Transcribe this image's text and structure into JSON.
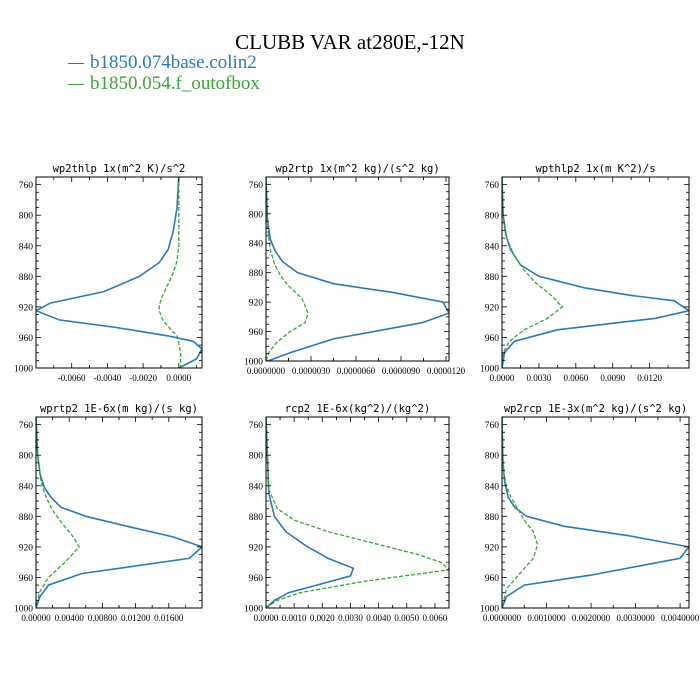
{
  "title": "CLUBB VAR at280E,-12N",
  "legend": [
    {
      "label": "b1850.074base.colin2",
      "color": "#2a7ab8",
      "style": "solid"
    },
    {
      "label": "b1850.054.f_outofbox",
      "color": "#3aa33a",
      "style": "dashed"
    }
  ],
  "chart_data": [
    {
      "type": "line",
      "title": "wp2thlp  1x(m^2 K)/s^2",
      "ylim": [
        1000,
        750
      ],
      "yticks": [
        760,
        800,
        840,
        880,
        920,
        960,
        1000
      ],
      "ytick_labels": [
        "760",
        "800",
        "840",
        "880",
        "920",
        "960",
        "1000"
      ],
      "xlim": [
        -0.008,
        0.0013
      ],
      "xticks": [
        -0.006,
        -0.004,
        -0.002,
        0.0
      ],
      "xtick_labels": [
        "-0.0060",
        "-0.0040",
        "-0.0020",
        "0.0000"
      ],
      "grid": false,
      "series": [
        {
          "name": "b1850.074base.colin2",
          "color": "#2a7ab8",
          "style": "solid",
          "x": [
            0.0,
            -0.0001,
            -0.0003,
            -0.0006,
            -0.0011,
            -0.0022,
            -0.0042,
            -0.0072,
            -0.008,
            -0.0067,
            -0.0035,
            -0.0006,
            0.0008,
            0.0013,
            0.001,
            0.0
          ],
          "y": [
            750,
            790,
            820,
            845,
            862,
            880,
            900,
            915,
            925,
            937,
            947,
            958,
            965,
            975,
            988,
            1000
          ]
        },
        {
          "name": "b1850.054.f_outofbox",
          "color": "#3aa33a",
          "style": "dashed",
          "x": [
            0.0,
            0.0,
            0.0,
            -0.0001,
            -0.0003,
            -0.0006,
            -0.0009,
            -0.0011,
            -0.0011,
            -0.0009,
            -0.0005,
            -0.0001,
            0.0,
            0.0001,
            0.0001
          ],
          "y": [
            750,
            800,
            840,
            860,
            875,
            890,
            905,
            918,
            925,
            937,
            948,
            958,
            968,
            980,
            1000
          ]
        }
      ]
    },
    {
      "type": "line",
      "title": "wp2rtp  1x(m^2 kg)/(s^2 kg)",
      "ylim": [
        1000,
        750
      ],
      "yticks": [
        760,
        800,
        840,
        880,
        920,
        960,
        1000
      ],
      "ytick_labels": [
        "760",
        "800",
        "840",
        "880",
        "920",
        "960",
        "1000"
      ],
      "xlim": [
        0.0,
        1.22e-05
      ],
      "xticks": [
        0.0,
        3e-06,
        6e-06,
        9e-06,
        1.2e-05
      ],
      "xtick_labels": [
        "0.0000000",
        "0.0000030",
        "0.0000060",
        "0.0000090",
        "0.0000120"
      ],
      "grid": false,
      "series": [
        {
          "name": "b1850.074base.colin2",
          "color": "#2a7ab8",
          "style": "solid",
          "x": [
            0.0,
            1e-07,
            3e-07,
            6e-07,
            1.1e-06,
            2.1e-06,
            4.5e-06,
            8.5e-06,
            1.18e-05,
            1.22e-05,
            1.04e-05,
            4.5e-06,
            1.7e-06,
            8e-07,
            1e-07
          ],
          "y": [
            750,
            810,
            835,
            850,
            865,
            880,
            895,
            907,
            920,
            935,
            948,
            970,
            988,
            995,
            1000
          ]
        },
        {
          "name": "b1850.054.f_outofbox",
          "color": "#3aa33a",
          "style": "dashed",
          "x": [
            0.0,
            1e-07,
            3e-07,
            6e-07,
            1e-06,
            1.5e-06,
            2.4e-06,
            2.8e-06,
            2.6e-06,
            1.6e-06,
            7e-07,
            2e-07,
            0.0
          ],
          "y": [
            750,
            820,
            850,
            870,
            885,
            898,
            915,
            935,
            948,
            960,
            975,
            988,
            1000
          ]
        }
      ]
    },
    {
      "type": "line",
      "title": "wpthlp2  1x(m K^2)/s",
      "ylim": [
        1000,
        750
      ],
      "yticks": [
        760,
        800,
        840,
        880,
        920,
        960,
        1000
      ],
      "ytick_labels": [
        "760",
        "800",
        "840",
        "880",
        "920",
        "960",
        "1000"
      ],
      "xlim": [
        0.0,
        0.0152
      ],
      "xticks": [
        0.0,
        0.003,
        0.006,
        0.009,
        0.012
      ],
      "xtick_labels": [
        "0.0000",
        "0.0030",
        "0.0060",
        "0.0090",
        "0.0120"
      ],
      "grid": false,
      "series": [
        {
          "name": "b1850.074base.colin2",
          "color": "#2a7ab8",
          "style": "solid",
          "x": [
            0.0,
            0.0001,
            0.0003,
            0.0007,
            0.0015,
            0.003,
            0.0067,
            0.0105,
            0.014,
            0.0152,
            0.0125,
            0.0045,
            0.001,
            0.0002,
            0.0
          ],
          "y": [
            750,
            800,
            825,
            845,
            865,
            880,
            895,
            905,
            912,
            925,
            935,
            950,
            965,
            980,
            1000
          ]
        },
        {
          "name": "b1850.054.f_outofbox",
          "color": "#3aa33a",
          "style": "dashed",
          "x": [
            0.0,
            0.0001,
            0.0004,
            0.0009,
            0.0017,
            0.0027,
            0.004,
            0.0049,
            0.0037,
            0.0018,
            0.0006,
            0.0001,
            0.0
          ],
          "y": [
            750,
            800,
            830,
            850,
            870,
            888,
            905,
            920,
            935,
            950,
            965,
            980,
            1000
          ]
        }
      ]
    },
    {
      "type": "line",
      "title": "wprtp2  1E-6x(m kg)/(s kg)",
      "ylim": [
        1000,
        750
      ],
      "yticks": [
        760,
        800,
        840,
        880,
        920,
        960,
        1000
      ],
      "ytick_labels": [
        "760",
        "800",
        "840",
        "880",
        "920",
        "960",
        "1000"
      ],
      "xlim": [
        0.0,
        0.02
      ],
      "xticks": [
        0.0,
        0.004,
        0.008,
        0.012,
        0.016
      ],
      "xtick_labels": [
        "0.00000",
        "0.00400",
        "0.00800",
        "0.01200",
        "0.01600"
      ],
      "grid": false,
      "series": [
        {
          "name": "b1850.074base.colin2",
          "color": "#2a7ab8",
          "style": "solid",
          "x": [
            0.0,
            0.0002,
            0.0005,
            0.001,
            0.0018,
            0.003,
            0.006,
            0.011,
            0.0165,
            0.02,
            0.0185,
            0.0055,
            0.0015,
            0.0005,
            0.0
          ],
          "y": [
            750,
            800,
            825,
            842,
            855,
            868,
            880,
            893,
            907,
            920,
            935,
            955,
            970,
            985,
            1000
          ]
        },
        {
          "name": "b1850.054.f_outofbox",
          "color": "#3aa33a",
          "style": "dashed",
          "x": [
            0.0,
            0.0002,
            0.0006,
            0.0012,
            0.002,
            0.0032,
            0.0045,
            0.0052,
            0.0035,
            0.0015,
            0.0004,
            0.0
          ],
          "y": [
            750,
            800,
            835,
            855,
            872,
            890,
            907,
            920,
            940,
            960,
            980,
            1000
          ]
        }
      ]
    },
    {
      "type": "line",
      "title": "rcp2  1E-6x(kg^2)/(kg^2)",
      "ylim": [
        1000,
        750
      ],
      "yticks": [
        760,
        800,
        840,
        880,
        920,
        960,
        1000
      ],
      "ytick_labels": [
        "760",
        "800",
        "840",
        "880",
        "920",
        "960",
        "1000"
      ],
      "xlim": [
        0.0,
        0.0065
      ],
      "xticks": [
        0.0,
        0.001,
        0.002,
        0.003,
        0.004,
        0.005,
        0.006
      ],
      "xtick_labels": [
        "0.0000",
        "0.0010",
        "0.0020",
        "0.0030",
        "0.0040",
        "0.0050",
        "0.0060"
      ],
      "grid": false,
      "series": [
        {
          "name": "b1850.074base.colin2",
          "color": "#2a7ab8",
          "style": "solid",
          "x": [
            0.0,
            0.0001,
            0.0003,
            0.0007,
            0.0014,
            0.0022,
            0.0031,
            0.003,
            0.0018,
            0.0008,
            0.0003,
            0.0
          ],
          "y": [
            750,
            850,
            880,
            900,
            918,
            935,
            948,
            958,
            970,
            980,
            990,
            1000
          ]
        },
        {
          "name": "b1850.054.f_outofbox",
          "color": "#3aa33a",
          "style": "dashed",
          "x": [
            0.0,
            0.0001,
            0.0004,
            0.001,
            0.0022,
            0.0038,
            0.0054,
            0.0062,
            0.0065,
            0.0035,
            0.0012,
            0.0004,
            0.0
          ],
          "y": [
            750,
            845,
            870,
            885,
            900,
            915,
            930,
            940,
            950,
            965,
            980,
            990,
            1000
          ]
        }
      ]
    },
    {
      "type": "line",
      "title": "wp2rcp  1E-3x(m^2 kg)/(s^2 kg)",
      "ylim": [
        1000,
        750
      ],
      "yticks": [
        760,
        800,
        840,
        880,
        920,
        960,
        1000
      ],
      "ytick_labels": [
        "760",
        "800",
        "840",
        "880",
        "920",
        "960",
        "1000"
      ],
      "xlim": [
        0.0,
        0.0042
      ],
      "xticks": [
        0.0,
        0.001,
        0.002,
        0.003,
        0.004
      ],
      "xtick_labels": [
        "0.0000000",
        "0.0010000",
        "0.0020000",
        "0.0030000",
        "0.0040000"
      ],
      "grid": false,
      "series": [
        {
          "name": "b1850.074base.colin2",
          "color": "#2a7ab8",
          "style": "solid",
          "x": [
            0.0,
            2e-05,
            6e-05,
            0.00014,
            0.00028,
            0.00055,
            0.0014,
            0.0028,
            0.0042,
            0.004,
            0.002,
            0.0005,
            0.0001,
            0.0
          ],
          "y": [
            750,
            810,
            835,
            855,
            868,
            880,
            893,
            905,
            920,
            935,
            957,
            970,
            985,
            1000
          ]
        },
        {
          "name": "b1850.054.f_outofbox",
          "color": "#3aa33a",
          "style": "dashed",
          "x": [
            0.0,
            3e-05,
            0.0001,
            0.0002,
            0.00035,
            0.0005,
            0.0007,
            0.0008,
            0.0007,
            0.0004,
            0.0001,
            0.0
          ],
          "y": [
            750,
            820,
            840,
            855,
            870,
            885,
            900,
            917,
            935,
            955,
            975,
            1000
          ]
        }
      ]
    }
  ]
}
